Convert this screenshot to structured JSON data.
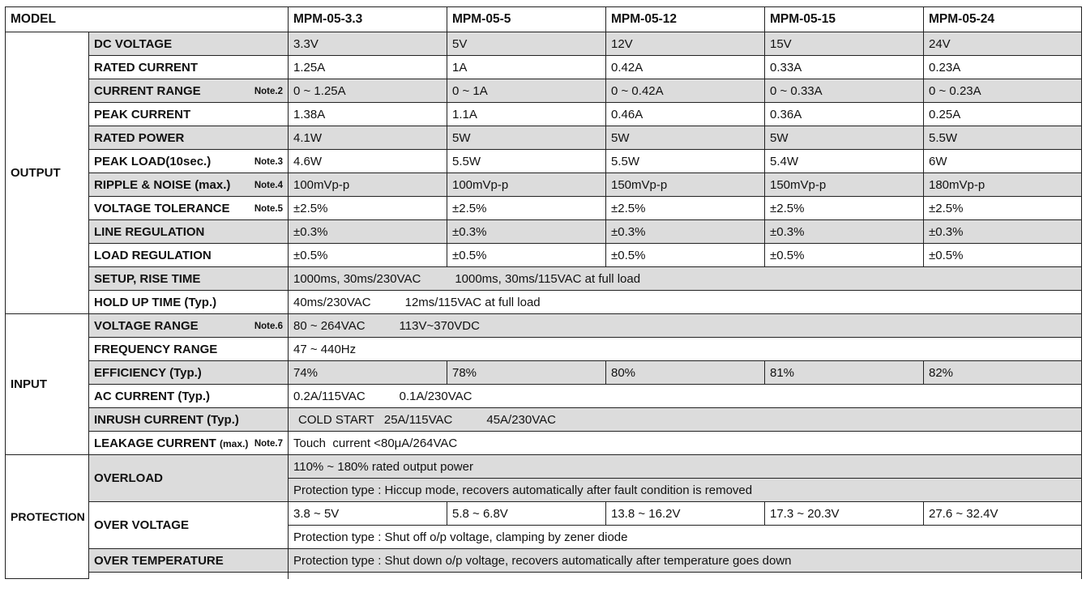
{
  "header": {
    "model_label": "MODEL",
    "models": [
      "MPM-05-3.3",
      "MPM-05-5",
      "MPM-05-12",
      "MPM-05-15",
      "MPM-05-24"
    ]
  },
  "output": {
    "label": "OUTPUT",
    "dc_voltage": {
      "label": "DC VOLTAGE",
      "values": [
        "3.3V",
        "5V",
        "12V",
        "15V",
        "24V"
      ]
    },
    "rated_current": {
      "label": "RATED CURRENT",
      "values": [
        "1.25A",
        "1A",
        "0.42A",
        "0.33A",
        "0.23A"
      ]
    },
    "current_range": {
      "label": "CURRENT RANGE",
      "note": "Note.2",
      "values": [
        "0 ~ 1.25A",
        "0 ~ 1A",
        "0 ~ 0.42A",
        "0 ~ 0.33A",
        "0 ~ 0.23A"
      ]
    },
    "peak_current": {
      "label": "PEAK CURRENT",
      "values": [
        "1.38A",
        "1.1A",
        "0.46A",
        "0.36A",
        "0.25A"
      ]
    },
    "rated_power": {
      "label": "RATED POWER",
      "values": [
        "4.1W",
        "5W",
        "5W",
        "5W",
        "5.5W"
      ]
    },
    "peak_load": {
      "label": "PEAK LOAD(10sec.)",
      "note": "Note.3",
      "values": [
        "4.6W",
        "5.5W",
        "5.5W",
        "5.4W",
        "6W"
      ]
    },
    "ripple_noise": {
      "label": "RIPPLE & NOISE (max.)",
      "note": "Note.4",
      "values": [
        "100mVp-p",
        "100mVp-p",
        "150mVp-p",
        "150mVp-p",
        "180mVp-p"
      ]
    },
    "voltage_tolerance": {
      "label": "VOLTAGE TOLERANCE",
      "note": "Note.5",
      "values": [
        "±2.5%",
        "±2.5%",
        "±2.5%",
        "±2.5%",
        "±2.5%"
      ]
    },
    "line_regulation": {
      "label": "LINE REGULATION",
      "values": [
        "±0.3%",
        "±0.3%",
        "±0.3%",
        "±0.3%",
        "±0.3%"
      ]
    },
    "load_regulation": {
      "label": "LOAD REGULATION",
      "values": [
        "±0.5%",
        "±0.5%",
        "±0.5%",
        "±0.5%",
        "±0.5%"
      ]
    },
    "setup_rise_time": {
      "label": "SETUP, RISE TIME",
      "value_a": "1000ms, 30ms/230VAC",
      "value_b": "1000ms, 30ms/115VAC at full load"
    },
    "hold_up_time": {
      "label": "HOLD UP TIME (Typ.)",
      "value_a": "40ms/230VAC",
      "value_b": "12ms/115VAC at full load"
    }
  },
  "input": {
    "label": "INPUT",
    "voltage_range": {
      "label": "VOLTAGE RANGE",
      "note": "Note.6",
      "value_a": "80 ~ 264VAC",
      "value_b": "113V~370VDC"
    },
    "frequency_range": {
      "label": "FREQUENCY RANGE",
      "value": "47 ~ 440Hz"
    },
    "efficiency": {
      "label": "EFFICIENCY (Typ.)",
      "values": [
        "74%",
        "78%",
        "80%",
        "81%",
        "82%"
      ]
    },
    "ac_current": {
      "label": "AC CURRENT (Typ.)",
      "value_a": "0.2A/115VAC",
      "value_b": "0.1A/230VAC"
    },
    "inrush_current": {
      "label": "INRUSH CURRENT (Typ.)",
      "value_a": "COLD START   25A/115VAC",
      "value_b": "45A/230VAC"
    },
    "leakage_current": {
      "label": "LEAKAGE CURRENT",
      "label_small": "(max.)",
      "note": "Note.7",
      "value": "Touch  current <80μA/264VAC"
    }
  },
  "protection": {
    "label": "PROTECTION",
    "overload": {
      "label": "OVERLOAD",
      "line1": "110% ~ 180% rated output power",
      "line2": "Protection type : Hiccup mode, recovers automatically after fault condition is removed"
    },
    "over_voltage": {
      "label": "OVER VOLTAGE",
      "values": [
        "3.8 ~ 5V",
        "5.8 ~ 6.8V",
        "13.8 ~ 16.2V",
        "17.3 ~ 20.3V",
        "27.6 ~ 32.4V"
      ],
      "line2": "Protection type : Shut off o/p voltage, clamping by zener diode"
    },
    "over_temperature": {
      "label": "OVER TEMPERATURE",
      "value": "Protection type : Shut down o/p voltage, recovers automatically after temperature goes down"
    }
  }
}
